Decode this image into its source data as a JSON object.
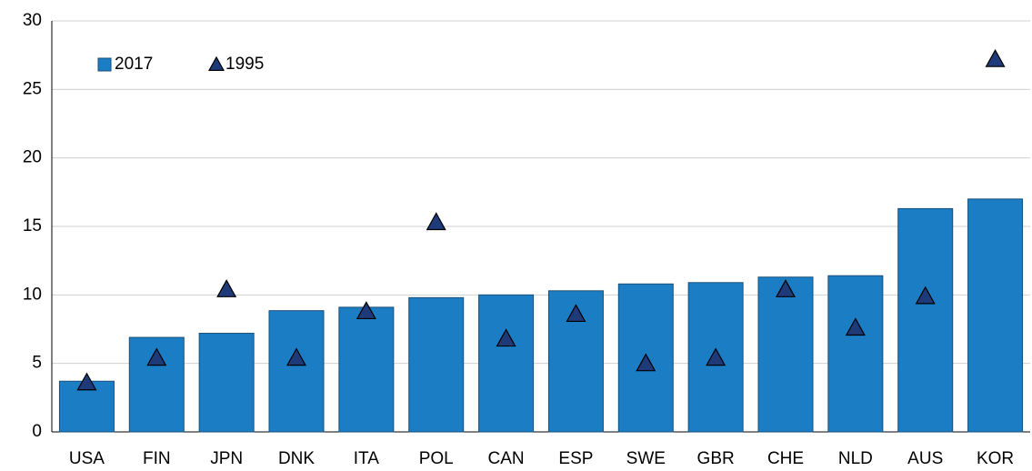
{
  "chart_data": {
    "type": "bar",
    "categories": [
      "USA",
      "FIN",
      "JPN",
      "DNK",
      "ITA",
      "POL",
      "CAN",
      "ESP",
      "SWE",
      "GBR",
      "CHE",
      "NLD",
      "AUS",
      "KOR"
    ],
    "series": [
      {
        "name": "2017",
        "type": "bar",
        "color": "#1b7dc4",
        "values": [
          3.7,
          6.9,
          7.2,
          8.85,
          9.1,
          9.8,
          10.0,
          10.3,
          10.8,
          10.9,
          11.3,
          11.4,
          16.3,
          17.0
        ]
      },
      {
        "name": "1995",
        "type": "scatter",
        "marker": "triangle",
        "color": "#1f3a78",
        "values": [
          3.6,
          5.4,
          10.4,
          5.4,
          8.8,
          15.3,
          6.8,
          8.6,
          5.0,
          5.4,
          10.4,
          7.6,
          9.9,
          27.2
        ]
      }
    ],
    "ylim": [
      0,
      30
    ],
    "yticks": [
      0,
      5,
      10,
      15,
      20,
      25,
      30
    ],
    "grid": true,
    "legend": "upper left"
  }
}
